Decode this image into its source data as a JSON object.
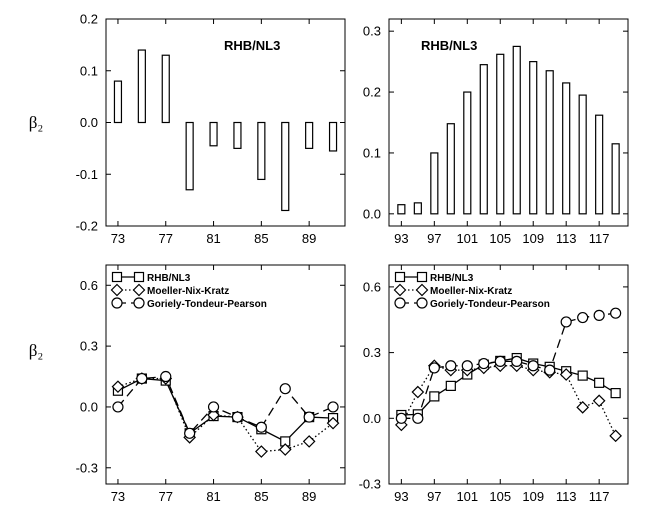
{
  "figure": {
    "ylabel": "β₂"
  },
  "chart_data": [
    {
      "id": "top-left",
      "type": "bar",
      "title": "RHB/NL3",
      "x": [
        73,
        75,
        77,
        79,
        81,
        83,
        85,
        87,
        89,
        91
      ],
      "values": [
        0.08,
        0.14,
        0.13,
        -0.13,
        -0.045,
        -0.05,
        -0.11,
        -0.17,
        -0.05,
        -0.055
      ],
      "xlim": [
        72,
        92
      ],
      "ylim": [
        -0.2,
        0.2
      ],
      "xticks": [
        73,
        77,
        81,
        85,
        89
      ],
      "xticklabels": [
        "73",
        "77",
        "81",
        "85",
        "89"
      ],
      "yticks": [
        -0.2,
        -0.1,
        0.0,
        0.1,
        0.2
      ],
      "yticklabels": [
        "-0.2",
        "-0.1",
        "0.0",
        "0.1",
        "0.2"
      ],
      "grid": false
    },
    {
      "id": "top-right",
      "type": "bar",
      "title": "RHB/NL3",
      "x": [
        93,
        95,
        97,
        99,
        101,
        103,
        105,
        107,
        109,
        111,
        113,
        115,
        117,
        119
      ],
      "values": [
        0.015,
        0.018,
        0.1,
        0.148,
        0.2,
        0.245,
        0.262,
        0.275,
        0.25,
        0.235,
        0.215,
        0.195,
        0.162,
        0.115
      ],
      "xlim": [
        91.5,
        120.5
      ],
      "ylim": [
        -0.02,
        0.32
      ],
      "xticks": [
        93,
        97,
        101,
        105,
        109,
        113,
        117
      ],
      "xticklabels": [
        "93",
        "97",
        "101",
        "105",
        "109",
        "113",
        "117"
      ],
      "yticks": [
        0.0,
        0.1,
        0.2,
        0.3
      ],
      "yticklabels": [
        "0.0",
        "0.1",
        "0.2",
        "0.3"
      ],
      "grid": false
    },
    {
      "id": "bottom-left",
      "type": "line",
      "xlim": [
        72,
        92
      ],
      "ylim": [
        -0.38,
        0.7
      ],
      "xticks": [
        73,
        77,
        81,
        85,
        89
      ],
      "xticklabels": [
        "73",
        "77",
        "81",
        "85",
        "89"
      ],
      "yticks": [
        -0.3,
        0.0,
        0.3,
        0.6
      ],
      "yticklabels": [
        "-0.3",
        "0.0",
        "0.3",
        "0.6"
      ],
      "legend_position": "top-left",
      "series": [
        {
          "name": "RHB/NL3",
          "marker": "square",
          "dash": "solid",
          "x": [
            73,
            75,
            77,
            79,
            81,
            83,
            85,
            87,
            89,
            91
          ],
          "values": [
            0.08,
            0.14,
            0.13,
            -0.13,
            -0.045,
            -0.05,
            -0.11,
            -0.17,
            -0.05,
            -0.055
          ]
        },
        {
          "name": "Moeller-Nix-Kratz",
          "marker": "diamond",
          "dash": "dotted",
          "x": [
            73,
            75,
            77,
            79,
            81,
            83,
            85,
            87,
            89,
            91
          ],
          "values": [
            0.1,
            0.14,
            0.14,
            -0.15,
            -0.04,
            -0.05,
            -0.22,
            -0.21,
            -0.17,
            -0.08
          ]
        },
        {
          "name": "Goriely-Tondeur-Pearson",
          "marker": "circle",
          "dash": "dashed",
          "x": [
            73,
            75,
            77,
            79,
            81,
            83,
            85,
            87,
            89,
            91
          ],
          "values": [
            0.0,
            0.14,
            0.15,
            -0.13,
            0.0,
            -0.05,
            -0.1,
            0.09,
            -0.05,
            0.0
          ]
        }
      ]
    },
    {
      "id": "bottom-right",
      "type": "line",
      "xlim": [
        91.5,
        120.5
      ],
      "ylim": [
        -0.3,
        0.7
      ],
      "xticks": [
        93,
        97,
        101,
        105,
        109,
        113,
        117
      ],
      "xticklabels": [
        "93",
        "97",
        "101",
        "105",
        "109",
        "113",
        "117"
      ],
      "yticks": [
        -0.3,
        0.0,
        0.3,
        0.6
      ],
      "yticklabels": [
        "-0.3",
        "0.0",
        "0.3",
        "0.6"
      ],
      "legend_position": "top-left",
      "series": [
        {
          "name": "RHB/NL3",
          "marker": "square",
          "dash": "solid",
          "x": [
            93,
            95,
            97,
            99,
            101,
            103,
            105,
            107,
            109,
            111,
            113,
            115,
            117,
            119
          ],
          "values": [
            0.015,
            0.018,
            0.1,
            0.148,
            0.2,
            0.245,
            0.262,
            0.275,
            0.25,
            0.235,
            0.215,
            0.195,
            0.162,
            0.115
          ]
        },
        {
          "name": "Moeller-Nix-Kratz",
          "marker": "diamond",
          "dash": "dotted",
          "x": [
            93,
            95,
            97,
            99,
            101,
            103,
            105,
            107,
            109,
            111,
            113,
            115,
            117,
            119
          ],
          "values": [
            -0.03,
            0.12,
            0.24,
            0.22,
            0.22,
            0.23,
            0.24,
            0.24,
            0.22,
            0.21,
            0.2,
            0.05,
            0.08,
            -0.08
          ]
        },
        {
          "name": "Goriely-Tondeur-Pearson",
          "marker": "circle",
          "dash": "dashed",
          "x": [
            93,
            95,
            97,
            99,
            101,
            103,
            105,
            107,
            109,
            111,
            113,
            115,
            117,
            119
          ],
          "values": [
            0.0,
            0.0,
            0.23,
            0.24,
            0.24,
            0.25,
            0.26,
            0.26,
            0.24,
            0.22,
            0.44,
            0.46,
            0.47,
            0.48
          ]
        }
      ]
    }
  ]
}
